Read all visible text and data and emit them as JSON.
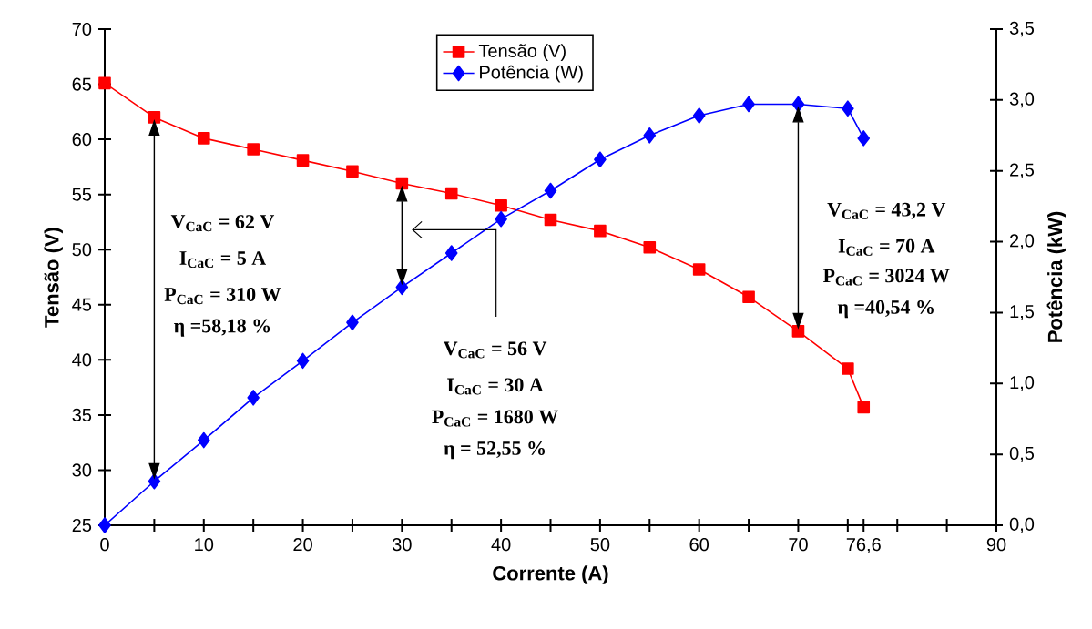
{
  "chart_data": {
    "type": "line",
    "xlabel": "Corrente (A)",
    "ylabel": "Tensão (V)",
    "y2label": "Potência (kW)",
    "x": [
      0,
      5,
      10,
      15,
      20,
      25,
      30,
      35,
      40,
      45,
      50,
      55,
      60,
      65,
      70,
      75,
      76.6
    ],
    "series": [
      {
        "name": "Tensão (V)",
        "color": "#ff0000",
        "marker": "square",
        "values": [
          65.1,
          62,
          60.1,
          59.1,
          58.1,
          57.1,
          56,
          55.1,
          54,
          52.7,
          51.7,
          50.2,
          48.2,
          45.7,
          42.6,
          39.2,
          35.7
        ]
      },
      {
        "name": "Potência (W)",
        "color": "#0000ff",
        "marker": "diamond",
        "axis": "y2",
        "values": [
          0,
          0.31,
          0.6,
          0.9,
          1.16,
          1.43,
          1.68,
          1.92,
          2.16,
          2.36,
          2.58,
          2.75,
          2.89,
          2.97,
          2.97,
          2.94,
          2.73
        ]
      }
    ],
    "xlim": [
      0,
      90
    ],
    "xticks": [
      0,
      {
        "value": 5,
        "label": null
      },
      10,
      {
        "value": 15,
        "label": null
      },
      20,
      {
        "value": 25,
        "label": null
      },
      30,
      {
        "value": 35,
        "label": null
      },
      40,
      {
        "value": 45,
        "label": null
      },
      50,
      {
        "value": 55,
        "label": null
      },
      60,
      {
        "value": 65,
        "label": null
      },
      70,
      {
        "value": 75,
        "label": null
      },
      {
        "value": 76.6,
        "label": "76,6"
      },
      {
        "value": 80,
        "label": null
      },
      {
        "value": 85,
        "label": null
      },
      90
    ],
    "ylim": [
      25,
      70
    ],
    "yticks": [
      25,
      30,
      35,
      40,
      45,
      50,
      55,
      60,
      65,
      70
    ],
    "y2lim": [
      0,
      3.5
    ],
    "y2ticks": [
      {
        "value": 0,
        "label": "0,0"
      },
      {
        "value": 0.5,
        "label": "0,5"
      },
      {
        "value": 1,
        "label": "1,0"
      },
      {
        "value": 1.5,
        "label": "1,5"
      },
      {
        "value": 2,
        "label": "2,0"
      },
      {
        "value": 2.5,
        "label": "2,5"
      },
      {
        "value": 3,
        "label": "3,0"
      },
      {
        "value": 3.5,
        "label": "3,5"
      }
    ],
    "legend": "top",
    "line_style": "solid",
    "annotations": [
      "V$_{CaC}$ = 62 V",
      "I$_{CaC}$ = 5 A",
      "P$_{CaC}$ = 310 W",
      "η  =58,18 %",
      "V$_{CaC}$ = 56 V",
      "I$_{CaC}$ = 30 A",
      "P$_{CaC}$ = 1680 W",
      "η  = 52,55 %",
      "V$_{CaC}$ = 43,2 V",
      "I$_{CaC}$ = 70 A",
      "P$_{CaC}$ = 3024 W",
      "η  =40,54 %"
    ]
  }
}
